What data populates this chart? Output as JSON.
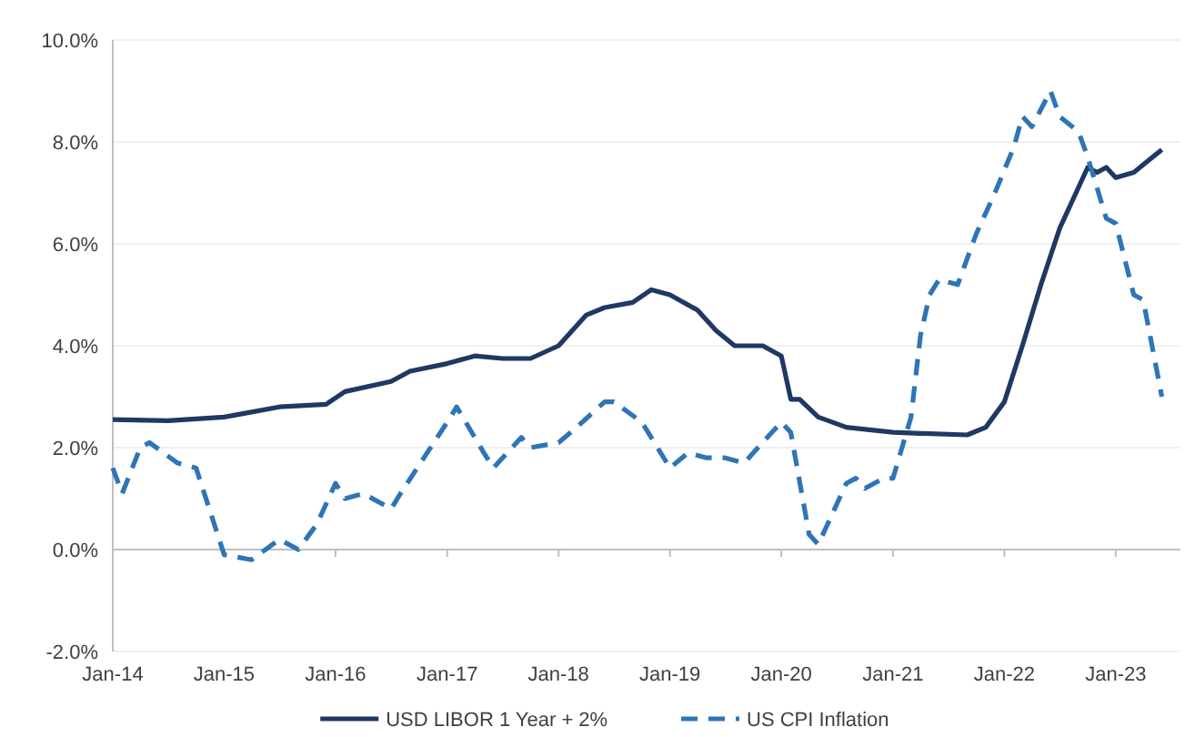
{
  "chart_data": {
    "type": "line",
    "legend": "bottom",
    "grid": "y",
    "xlim": [
      "2014-01",
      "2023-08"
    ],
    "xticks": [
      {
        "value": "2014-01",
        "label": "Jan-14"
      },
      {
        "value": "2015-01",
        "label": "Jan-15"
      },
      {
        "value": "2016-01",
        "label": "Jan-16"
      },
      {
        "value": "2017-01",
        "label": "Jan-17"
      },
      {
        "value": "2018-01",
        "label": "Jan-18"
      },
      {
        "value": "2019-01",
        "label": "Jan-19"
      },
      {
        "value": "2020-01",
        "label": "Jan-20"
      },
      {
        "value": "2021-01",
        "label": "Jan-21"
      },
      {
        "value": "2022-01",
        "label": "Jan-22"
      },
      {
        "value": "2023-01",
        "label": "Jan-23"
      }
    ],
    "ylim": [
      -2,
      10
    ],
    "yticks": [
      {
        "value": -2,
        "label": "-2.0%"
      },
      {
        "value": 0,
        "label": "0.0%"
      },
      {
        "value": 2,
        "label": "2.0%"
      },
      {
        "value": 4,
        "label": "4.0%"
      },
      {
        "value": 6,
        "label": "6.0%"
      },
      {
        "value": 8,
        "label": "8.0%"
      },
      {
        "value": 10,
        "label": "10.0%"
      }
    ],
    "series": [
      {
        "name": "USD LIBOR 1 Year + 2%",
        "color": "#1f3864",
        "line_style": "solid",
        "x": [
          "2014-01",
          "2014-07",
          "2015-01",
          "2015-07",
          "2015-12",
          "2016-02",
          "2016-07",
          "2016-09",
          "2017-01",
          "2017-04",
          "2017-07",
          "2017-10",
          "2018-01",
          "2018-04",
          "2018-06",
          "2018-09",
          "2018-11",
          "2019-01",
          "2019-04",
          "2019-06",
          "2019-08",
          "2019-11",
          "2020-01",
          "2020-02",
          "2020-03",
          "2020-05",
          "2020-08",
          "2021-01",
          "2021-04",
          "2021-09",
          "2021-11",
          "2022-01",
          "2022-03",
          "2022-05",
          "2022-07",
          "2022-10",
          "2022-11",
          "2022-12",
          "2023-01",
          "2023-03",
          "2023-06"
        ],
        "values": [
          2.55,
          2.53,
          2.6,
          2.8,
          2.85,
          3.1,
          3.3,
          3.5,
          3.65,
          3.8,
          3.75,
          3.75,
          4.0,
          4.6,
          4.75,
          4.85,
          5.1,
          5.0,
          4.7,
          4.3,
          4.0,
          4.0,
          3.8,
          2.95,
          2.95,
          2.6,
          2.4,
          2.3,
          2.28,
          2.25,
          2.4,
          2.9,
          4.0,
          5.2,
          6.3,
          7.5,
          7.4,
          7.5,
          7.3,
          7.4,
          7.85
        ]
      },
      {
        "name": "US CPI Inflation",
        "color": "#2e75b6",
        "line_style": "dashed",
        "x": [
          "2014-01",
          "2014-02",
          "2014-04",
          "2014-05",
          "2014-08",
          "2014-10",
          "2015-01",
          "2015-04",
          "2015-07",
          "2015-09",
          "2015-11",
          "2016-01",
          "2016-02",
          "2016-04",
          "2016-07",
          "2016-08",
          "2017-01",
          "2017-02",
          "2017-05",
          "2017-06",
          "2017-09",
          "2017-10",
          "2018-01",
          "2018-03",
          "2018-06",
          "2018-07",
          "2018-10",
          "2019-01",
          "2019-03",
          "2019-05",
          "2019-07",
          "2019-09",
          "2019-12",
          "2020-01",
          "2020-02",
          "2020-04",
          "2020-05",
          "2020-08",
          "2020-09",
          "2020-10",
          "2020-12",
          "2021-01",
          "2021-03",
          "2021-04",
          "2021-05",
          "2021-06",
          "2021-08",
          "2021-10",
          "2021-12",
          "2022-02",
          "2022-03",
          "2022-04",
          "2022-06",
          "2022-07",
          "2022-09",
          "2022-10",
          "2022-12",
          "2023-01",
          "2023-03",
          "2023-04",
          "2023-06"
        ],
        "values": [
          1.6,
          1.1,
          2.0,
          2.1,
          1.7,
          1.6,
          -0.1,
          -0.2,
          0.2,
          0.0,
          0.5,
          1.3,
          1.0,
          1.1,
          0.8,
          1.1,
          2.5,
          2.8,
          1.9,
          1.6,
          2.2,
          2.0,
          2.1,
          2.4,
          2.9,
          2.9,
          2.5,
          1.6,
          1.9,
          1.8,
          1.8,
          1.7,
          2.3,
          2.5,
          2.3,
          0.3,
          0.1,
          1.3,
          1.4,
          1.2,
          1.4,
          1.4,
          2.6,
          4.2,
          5.0,
          5.3,
          5.2,
          6.2,
          7.0,
          7.9,
          8.5,
          8.3,
          9.0,
          8.5,
          8.2,
          7.7,
          6.5,
          6.4,
          5.0,
          4.9,
          3.0
        ]
      }
    ]
  }
}
